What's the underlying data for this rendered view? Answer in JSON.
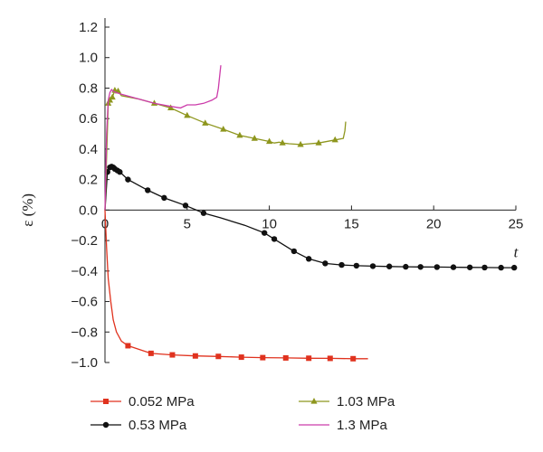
{
  "chart_data": {
    "type": "line",
    "title": "",
    "xlabel": "t",
    "ylabel": "ε (%)",
    "xlim": [
      0,
      25
    ],
    "ylim": [
      -1.0,
      1.2
    ],
    "xticks": [
      0,
      5,
      10,
      15,
      20,
      25
    ],
    "yticks": [
      1.2,
      1.0,
      0.8,
      0.6,
      0.4,
      0.2,
      0.0,
      -0.2,
      -0.4,
      -0.6,
      -0.8,
      -1.0
    ],
    "xtick_labels": [
      "0",
      "5",
      "10",
      "15",
      "20",
      "25"
    ],
    "ytick_labels": [
      "1.2",
      "1.0",
      "0.8",
      "0.6",
      "0.4",
      "0.2",
      "0.0",
      "−0.2",
      "−0.4",
      "−0.6",
      "−0.8",
      "−1.0"
    ],
    "grid": false,
    "legend_position": "bottom",
    "series": [
      {
        "name": "0.052 MPa",
        "color": "#e0321e",
        "marker": "square",
        "x": [
          0,
          0.1,
          0.2,
          0.35,
          0.5,
          0.7,
          1.0,
          1.4,
          2.8,
          4.1,
          5.5,
          6.9,
          8.3,
          9.6,
          11.0,
          12.4,
          13.7,
          15.1,
          16.0
        ],
        "y": [
          0.0,
          -0.25,
          -0.45,
          -0.6,
          -0.72,
          -0.8,
          -0.86,
          -0.89,
          -0.94,
          -0.95,
          -0.957,
          -0.96,
          -0.965,
          -0.968,
          -0.97,
          -0.972,
          -0.973,
          -0.975,
          -0.975
        ],
        "marked": [
          false,
          false,
          false,
          false,
          false,
          false,
          false,
          true,
          true,
          true,
          true,
          true,
          true,
          true,
          true,
          true,
          true,
          true,
          false
        ]
      },
      {
        "name": "0.53 MPa",
        "color": "#111111",
        "marker": "circle",
        "x": [
          0,
          0.15,
          0.3,
          0.4,
          0.5,
          0.6,
          0.75,
          0.9,
          1.4,
          2.6,
          3.6,
          4.9,
          6.0,
          7.0,
          8.5,
          9.7,
          10.3,
          11.5,
          12.4,
          13.4,
          14.4,
          15.3,
          16.3,
          17.3,
          18.3,
          19.2,
          20.2,
          21.2,
          22.2,
          23.1,
          24.1,
          24.9
        ],
        "y": [
          0.0,
          0.25,
          0.28,
          0.285,
          0.28,
          0.27,
          0.26,
          0.25,
          0.2,
          0.13,
          0.08,
          0.03,
          -0.02,
          -0.05,
          -0.1,
          -0.15,
          -0.19,
          -0.27,
          -0.32,
          -0.35,
          -0.36,
          -0.365,
          -0.368,
          -0.37,
          -0.372,
          -0.373,
          -0.374,
          -0.375,
          -0.376,
          -0.377,
          -0.378,
          -0.378
        ],
        "marked": [
          false,
          true,
          true,
          true,
          true,
          true,
          true,
          true,
          true,
          true,
          true,
          true,
          true,
          false,
          false,
          true,
          true,
          true,
          true,
          true,
          true,
          true,
          true,
          true,
          true,
          true,
          true,
          true,
          true,
          true,
          true,
          true
        ]
      },
      {
        "name": "1.03 MPa",
        "color": "#8e961e",
        "marker": "triangle",
        "x": [
          0,
          0.2,
          0.3,
          0.45,
          0.6,
          0.8,
          1.0,
          2.0,
          3.0,
          4.0,
          5.0,
          6.1,
          7.2,
          8.2,
          9.1,
          10.0,
          10.3,
          10.6,
          10.8,
          11.2,
          11.9,
          13.0,
          14.0,
          14.5,
          14.6,
          14.65
        ],
        "y": [
          0.0,
          0.7,
          0.72,
          0.74,
          0.785,
          0.78,
          0.75,
          0.73,
          0.7,
          0.67,
          0.62,
          0.57,
          0.53,
          0.49,
          0.47,
          0.45,
          0.44,
          0.445,
          0.44,
          0.435,
          0.43,
          0.44,
          0.46,
          0.47,
          0.52,
          0.58
        ],
        "marked": [
          false,
          true,
          true,
          true,
          true,
          true,
          false,
          false,
          true,
          true,
          true,
          true,
          true,
          true,
          true,
          true,
          false,
          false,
          true,
          false,
          true,
          true,
          true,
          false,
          false,
          false
        ]
      },
      {
        "name": "1.3 MPa",
        "color": "#cc3caa",
        "marker": "none",
        "x": [
          0,
          0.1,
          0.2,
          0.3,
          0.4,
          0.5,
          0.7,
          1.0,
          2.0,
          3.0,
          4.0,
          4.6,
          5.0,
          5.5,
          6.0,
          6.5,
          6.8,
          6.9,
          7.0,
          7.05
        ],
        "y": [
          0.0,
          0.5,
          0.72,
          0.77,
          0.79,
          0.78,
          0.77,
          0.76,
          0.73,
          0.7,
          0.68,
          0.67,
          0.69,
          0.69,
          0.7,
          0.72,
          0.74,
          0.8,
          0.9,
          0.95
        ],
        "marked": []
      }
    ]
  }
}
